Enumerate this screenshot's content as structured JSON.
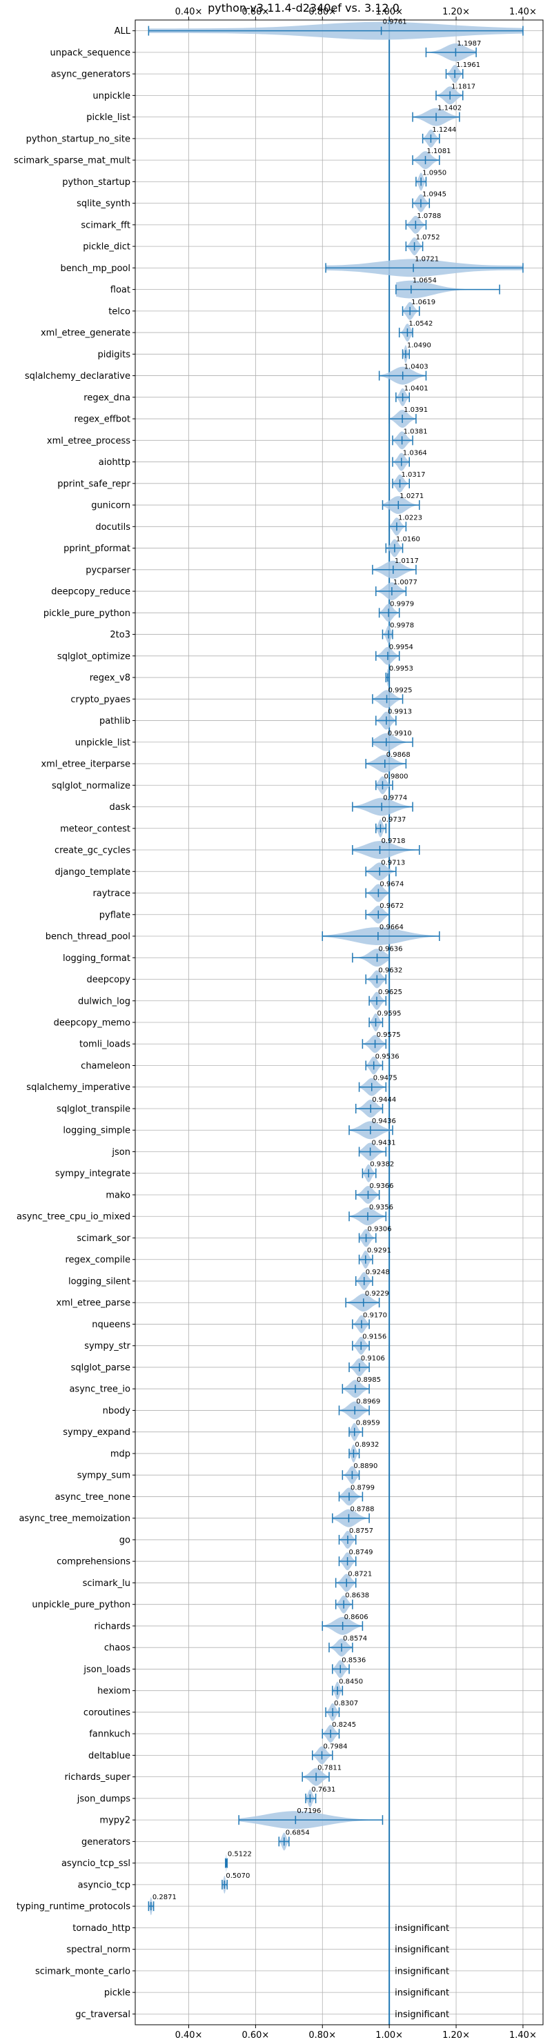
{
  "chart_data": {
    "type": "violin",
    "title": "python-v3.11.4-d2340ef vs. 3.12.0",
    "xlim": [
      0.24,
      1.46
    ],
    "x_ticks": [
      0.4,
      0.6,
      0.8,
      1.0,
      1.2,
      1.4
    ],
    "x_tick_labels": [
      "0.40×",
      "0.60×",
      "0.80×",
      "1.00×",
      "1.20×",
      "1.40×"
    ],
    "x_ticks_top": true,
    "x_ticks_bottom": true,
    "grid": true,
    "reference_line": 1.0,
    "colors": {
      "violin": "#aac8e4",
      "stroke": "#1f77b4",
      "grid": "#b0b0b0",
      "reference": "#1f77b4"
    },
    "benchmarks": [
      {
        "name": "ALL",
        "value": 0.9761,
        "min": 0.28,
        "max": 1.4,
        "wide": true
      },
      {
        "name": "unpack_sequence",
        "value": 1.1987,
        "min": 1.11,
        "max": 1.26
      },
      {
        "name": "async_generators",
        "value": 1.1961,
        "min": 1.17,
        "max": 1.22
      },
      {
        "name": "unpickle",
        "value": 1.1817,
        "min": 1.14,
        "max": 1.22
      },
      {
        "name": "pickle_list",
        "value": 1.1402,
        "min": 1.07,
        "max": 1.21
      },
      {
        "name": "python_startup_no_site",
        "value": 1.1244,
        "min": 1.1,
        "max": 1.15
      },
      {
        "name": "scimark_sparse_mat_mult",
        "value": 1.1081,
        "min": 1.07,
        "max": 1.15
      },
      {
        "name": "python_startup",
        "value": 1.095,
        "min": 1.08,
        "max": 1.11
      },
      {
        "name": "sqlite_synth",
        "value": 1.0945,
        "min": 1.07,
        "max": 1.12
      },
      {
        "name": "scimark_fft",
        "value": 1.0788,
        "min": 1.05,
        "max": 1.11
      },
      {
        "name": "pickle_dict",
        "value": 1.0752,
        "min": 1.05,
        "max": 1.1
      },
      {
        "name": "bench_mp_pool",
        "value": 1.0721,
        "min": 0.81,
        "max": 1.4,
        "wide": true
      },
      {
        "name": "float",
        "value": 1.0654,
        "min": 1.02,
        "max": 1.33
      },
      {
        "name": "telco",
        "value": 1.0619,
        "min": 1.04,
        "max": 1.09
      },
      {
        "name": "xml_etree_generate",
        "value": 1.0542,
        "min": 1.03,
        "max": 1.07
      },
      {
        "name": "pidigits",
        "value": 1.049,
        "min": 1.04,
        "max": 1.06
      },
      {
        "name": "sqlalchemy_declarative",
        "value": 1.0403,
        "min": 0.97,
        "max": 1.11
      },
      {
        "name": "regex_dna",
        "value": 1.0401,
        "min": 1.02,
        "max": 1.06
      },
      {
        "name": "regex_effbot",
        "value": 1.0391,
        "min": 1.0,
        "max": 1.08
      },
      {
        "name": "xml_etree_process",
        "value": 1.0381,
        "min": 1.01,
        "max": 1.07
      },
      {
        "name": "aiohttp",
        "value": 1.0364,
        "min": 1.01,
        "max": 1.06
      },
      {
        "name": "pprint_safe_repr",
        "value": 1.0317,
        "min": 1.01,
        "max": 1.06
      },
      {
        "name": "gunicorn",
        "value": 1.0271,
        "min": 0.98,
        "max": 1.09
      },
      {
        "name": "docutils",
        "value": 1.0223,
        "min": 1.0,
        "max": 1.05
      },
      {
        "name": "pprint_pformat",
        "value": 1.016,
        "min": 0.99,
        "max": 1.04
      },
      {
        "name": "pycparser",
        "value": 1.0117,
        "min": 0.95,
        "max": 1.08
      },
      {
        "name": "deepcopy_reduce",
        "value": 1.0077,
        "min": 0.96,
        "max": 1.05
      },
      {
        "name": "pickle_pure_python",
        "value": 0.9979,
        "min": 0.97,
        "max": 1.03
      },
      {
        "name": "2to3",
        "value": 0.9978,
        "min": 0.98,
        "max": 1.01
      },
      {
        "name": "sqlglot_optimize",
        "value": 0.9954,
        "min": 0.96,
        "max": 1.03
      },
      {
        "name": "regex_v8",
        "value": 0.9953,
        "min": 0.99,
        "max": 1.0
      },
      {
        "name": "crypto_pyaes",
        "value": 0.9925,
        "min": 0.95,
        "max": 1.04
      },
      {
        "name": "pathlib",
        "value": 0.9913,
        "min": 0.96,
        "max": 1.02
      },
      {
        "name": "unpickle_list",
        "value": 0.991,
        "min": 0.95,
        "max": 1.07
      },
      {
        "name": "xml_etree_iterparse",
        "value": 0.9868,
        "min": 0.93,
        "max": 1.05
      },
      {
        "name": "sqlglot_normalize",
        "value": 0.98,
        "min": 0.96,
        "max": 1.01
      },
      {
        "name": "dask",
        "value": 0.9774,
        "min": 0.89,
        "max": 1.07
      },
      {
        "name": "meteor_contest",
        "value": 0.9737,
        "min": 0.96,
        "max": 0.99
      },
      {
        "name": "create_gc_cycles",
        "value": 0.9718,
        "min": 0.89,
        "max": 1.09
      },
      {
        "name": "django_template",
        "value": 0.9713,
        "min": 0.93,
        "max": 1.02
      },
      {
        "name": "raytrace",
        "value": 0.9674,
        "min": 0.93,
        "max": 1.0
      },
      {
        "name": "pyflate",
        "value": 0.9672,
        "min": 0.93,
        "max": 1.0
      },
      {
        "name": "bench_thread_pool",
        "value": 0.9664,
        "min": 0.8,
        "max": 1.15
      },
      {
        "name": "logging_format",
        "value": 0.9636,
        "min": 0.89,
        "max": 1.0
      },
      {
        "name": "deepcopy",
        "value": 0.9632,
        "min": 0.93,
        "max": 0.99
      },
      {
        "name": "dulwich_log",
        "value": 0.9625,
        "min": 0.94,
        "max": 0.99
      },
      {
        "name": "deepcopy_memo",
        "value": 0.9595,
        "min": 0.94,
        "max": 0.98
      },
      {
        "name": "tomli_loads",
        "value": 0.9575,
        "min": 0.92,
        "max": 0.99
      },
      {
        "name": "chameleon",
        "value": 0.9536,
        "min": 0.93,
        "max": 0.98
      },
      {
        "name": "sqlalchemy_imperative",
        "value": 0.9475,
        "min": 0.91,
        "max": 0.99
      },
      {
        "name": "sqlglot_transpile",
        "value": 0.9444,
        "min": 0.9,
        "max": 0.98
      },
      {
        "name": "logging_simple",
        "value": 0.9436,
        "min": 0.88,
        "max": 1.01
      },
      {
        "name": "json",
        "value": 0.9431,
        "min": 0.91,
        "max": 0.99
      },
      {
        "name": "sympy_integrate",
        "value": 0.9382,
        "min": 0.92,
        "max": 0.96
      },
      {
        "name": "mako",
        "value": 0.9366,
        "min": 0.9,
        "max": 0.97
      },
      {
        "name": "async_tree_cpu_io_mixed",
        "value": 0.9356,
        "min": 0.88,
        "max": 0.99
      },
      {
        "name": "scimark_sor",
        "value": 0.9306,
        "min": 0.91,
        "max": 0.96
      },
      {
        "name": "regex_compile",
        "value": 0.9291,
        "min": 0.91,
        "max": 0.95
      },
      {
        "name": "logging_silent",
        "value": 0.9248,
        "min": 0.9,
        "max": 0.95
      },
      {
        "name": "xml_etree_parse",
        "value": 0.9229,
        "min": 0.87,
        "max": 0.97
      },
      {
        "name": "nqueens",
        "value": 0.917,
        "min": 0.89,
        "max": 0.94
      },
      {
        "name": "sympy_str",
        "value": 0.9156,
        "min": 0.89,
        "max": 0.94
      },
      {
        "name": "sqlglot_parse",
        "value": 0.9106,
        "min": 0.88,
        "max": 0.94
      },
      {
        "name": "async_tree_io",
        "value": 0.8985,
        "min": 0.86,
        "max": 0.94
      },
      {
        "name": "nbody",
        "value": 0.8969,
        "min": 0.85,
        "max": 0.94
      },
      {
        "name": "sympy_expand",
        "value": 0.8959,
        "min": 0.88,
        "max": 0.92
      },
      {
        "name": "mdp",
        "value": 0.8932,
        "min": 0.88,
        "max": 0.91
      },
      {
        "name": "sympy_sum",
        "value": 0.889,
        "min": 0.86,
        "max": 0.91
      },
      {
        "name": "async_tree_none",
        "value": 0.8799,
        "min": 0.85,
        "max": 0.92
      },
      {
        "name": "async_tree_memoization",
        "value": 0.8788,
        "min": 0.83,
        "max": 0.94
      },
      {
        "name": "go",
        "value": 0.8757,
        "min": 0.85,
        "max": 0.9
      },
      {
        "name": "comprehensions",
        "value": 0.8749,
        "min": 0.85,
        "max": 0.9
      },
      {
        "name": "scimark_lu",
        "value": 0.8721,
        "min": 0.84,
        "max": 0.9
      },
      {
        "name": "unpickle_pure_python",
        "value": 0.8638,
        "min": 0.84,
        "max": 0.89
      },
      {
        "name": "richards",
        "value": 0.8606,
        "min": 0.8,
        "max": 0.92
      },
      {
        "name": "chaos",
        "value": 0.8574,
        "min": 0.82,
        "max": 0.89
      },
      {
        "name": "json_loads",
        "value": 0.8536,
        "min": 0.83,
        "max": 0.88
      },
      {
        "name": "hexiom",
        "value": 0.845,
        "min": 0.83,
        "max": 0.86
      },
      {
        "name": "coroutines",
        "value": 0.8307,
        "min": 0.81,
        "max": 0.85
      },
      {
        "name": "fannkuch",
        "value": 0.8245,
        "min": 0.8,
        "max": 0.85
      },
      {
        "name": "deltablue",
        "value": 0.7984,
        "min": 0.77,
        "max": 0.83
      },
      {
        "name": "richards_super",
        "value": 0.7811,
        "min": 0.74,
        "max": 0.82
      },
      {
        "name": "json_dumps",
        "value": 0.7631,
        "min": 0.75,
        "max": 0.78
      },
      {
        "name": "mypy2",
        "value": 0.7196,
        "min": 0.55,
        "max": 0.98
      },
      {
        "name": "generators",
        "value": 0.6854,
        "min": 0.67,
        "max": 0.7
      },
      {
        "name": "asyncio_tcp_ssl",
        "value": 0.5122,
        "min": 0.51,
        "max": 0.515
      },
      {
        "name": "asyncio_tcp",
        "value": 0.507,
        "min": 0.5,
        "max": 0.515
      },
      {
        "name": "typing_runtime_protocols",
        "value": 0.2871,
        "min": 0.28,
        "max": 0.295
      },
      {
        "name": "tornado_http",
        "insignificant": true
      },
      {
        "name": "spectral_norm",
        "insignificant": true
      },
      {
        "name": "scimark_monte_carlo",
        "insignificant": true
      },
      {
        "name": "pickle",
        "insignificant": true
      },
      {
        "name": "gc_traversal",
        "insignificant": true
      }
    ],
    "insignificant_label": "insignificant"
  }
}
